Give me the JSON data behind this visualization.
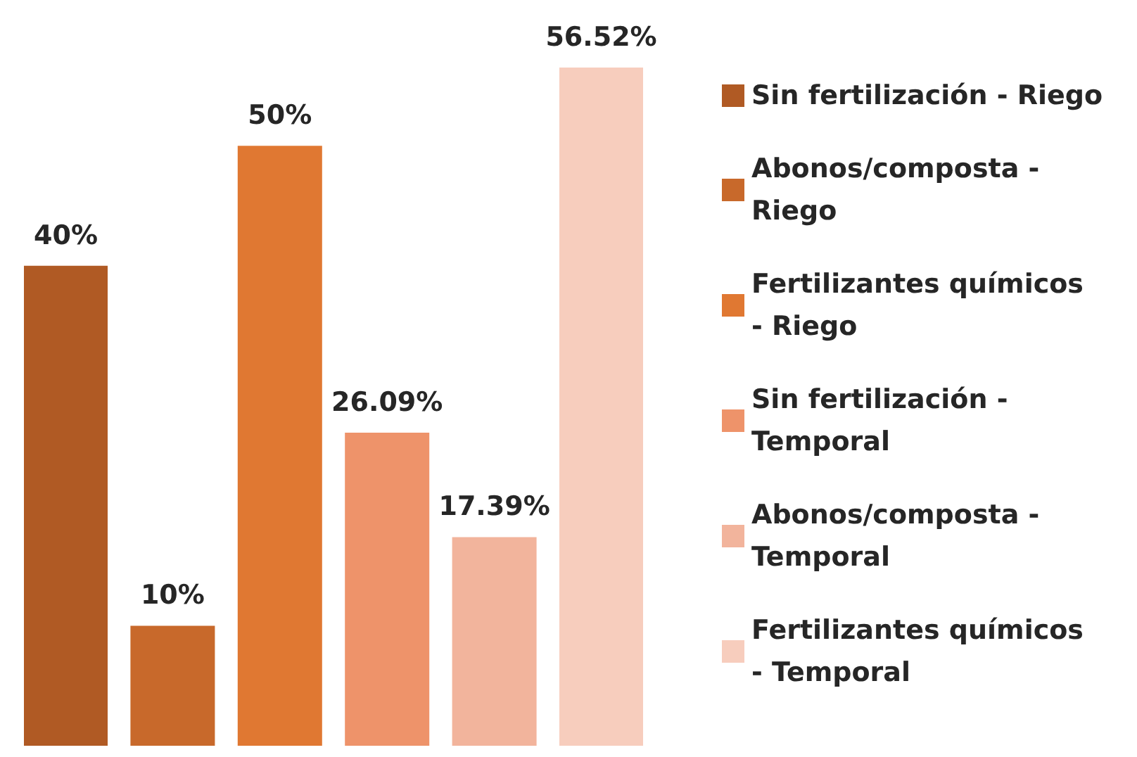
{
  "chart_data": {
    "type": "bar",
    "categories": [
      null
    ],
    "legend": "right",
    "series": [
      {
        "name": "Sin fertilización - Riego",
        "color": "#b05a24",
        "values": [
          40
        ],
        "value_labels": [
          "40%"
        ]
      },
      {
        "name": "Abonos/composta - Riego",
        "color": "#c8692b",
        "values": [
          10
        ],
        "value_labels": [
          "10%"
        ]
      },
      {
        "name": "Fertilizantes químicos - Riego",
        "color": "#e07832",
        "values": [
          50
        ],
        "value_labels": [
          "50%"
        ]
      },
      {
        "name": "Sin fertilización - Temporal",
        "color": "#ee936a",
        "values": [
          26.09
        ],
        "value_labels": [
          "26.09%"
        ]
      },
      {
        "name": "Abonos/composta - Temporal",
        "color": "#f2b49c",
        "values": [
          17.39
        ],
        "value_labels": [
          "17.39%"
        ]
      },
      {
        "name": "Fertilizantes químicos - Temporal",
        "color": "#f7cdbd",
        "values": [
          56.52
        ],
        "value_labels": [
          "56.52%"
        ]
      }
    ]
  }
}
